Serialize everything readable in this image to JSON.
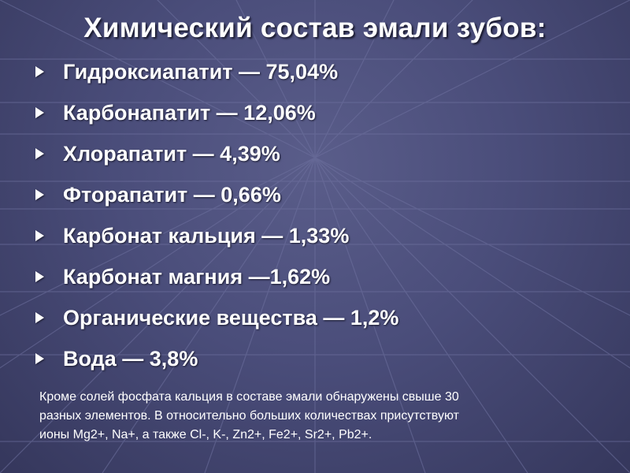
{
  "slide": {
    "title": "Химический состав эмали зубов:",
    "items": [
      "Гидроксиапатит — 75,04%",
      "Карбонапатит — 12,06%",
      "Хлорапатит — 4,39%",
      "Фторапатит — 0,66%",
      "Карбонат кальция — 1,33%",
      "Карбонат магния —1,62%",
      "Органические вещества — 1,2%",
      "Вода — 3,8%"
    ],
    "note_lines": [
      "Кроме солей фосфата кальция в составе эмали обнаружены свыше 30",
      "разных элементов. В относительно больших количествах присутствуют",
      "ионы Mg2+, Na+, а также Cl-, K-, Zn2+, Fe2+, Sr2+, Pb2+."
    ]
  },
  "colors": {
    "text": "#ffffff",
    "background": "#4a4d7a",
    "grid_line": "#6a6d9a"
  }
}
